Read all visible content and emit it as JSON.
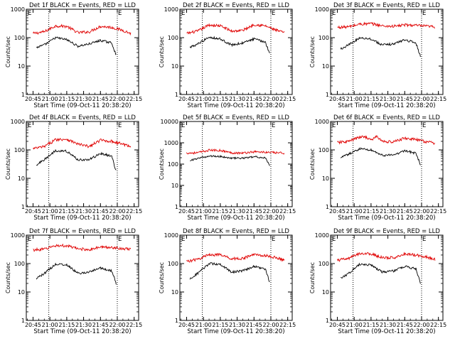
{
  "chart_data": [
    {
      "type": "line",
      "title": "Det 1f BLACK = Events, RED = LLD",
      "xlabel": "Start Time (09-Oct-11 20:38:20)",
      "ylabel": "Counts/sec",
      "y_scale": "log",
      "ylim": [
        1,
        1000
      ],
      "y_tick_labels": [
        "1",
        "10",
        "100",
        "1000"
      ],
      "x_tick_labels": [
        "20:45",
        "21:00",
        "21:15",
        "21:30",
        "21:45",
        "22:00",
        "22:15"
      ],
      "x_markers": [
        {
          "x": "20:59",
          "label": ""
        },
        {
          "x": "22:00",
          "label": "E"
        }
      ],
      "top_markers": [
        "E",
        "E"
      ],
      "colors": {
        "events": "#000000",
        "lld": "#e00000"
      },
      "series": [
        {
          "name": "LLD",
          "color": "#e00000",
          "x": [
            "20:45",
            "20:55",
            "21:05",
            "21:15",
            "21:25",
            "21:35",
            "21:45",
            "21:55",
            "22:05",
            "22:12"
          ],
          "values": [
            140,
            160,
            260,
            250,
            150,
            160,
            250,
            230,
            180,
            140
          ]
        },
        {
          "name": "Events",
          "color": "#000000",
          "x": [
            "20:48",
            "20:55",
            "21:05",
            "21:15",
            "21:25",
            "21:35",
            "21:45",
            "21:55",
            "21:59"
          ],
          "values": [
            45,
            55,
            100,
            85,
            50,
            60,
            80,
            65,
            25
          ]
        }
      ]
    },
    {
      "type": "line",
      "title": "Det 2f BLACK = Events, RED = LLD",
      "xlabel": "Start Time (09-Oct-11 20:38:20)",
      "ylabel": "Counts/sec",
      "y_scale": "log",
      "ylim": [
        1,
        1000
      ],
      "y_tick_labels": [
        "1",
        "10",
        "100",
        "1000"
      ],
      "x_tick_labels": [
        "20:45",
        "21:00",
        "21:15",
        "21:30",
        "21:45",
        "22:00",
        "22:15"
      ],
      "x_markers": [
        {
          "x": "20:59",
          "label": ""
        },
        {
          "x": "22:00",
          "label": "E"
        }
      ],
      "top_markers": [
        "E",
        "E"
      ],
      "colors": {
        "events": "#000000",
        "lld": "#e00000"
      },
      "series": [
        {
          "name": "LLD",
          "color": "#e00000",
          "x": [
            "20:45",
            "20:55",
            "21:05",
            "21:15",
            "21:25",
            "21:35",
            "21:45",
            "21:55",
            "22:05",
            "22:12"
          ],
          "values": [
            140,
            170,
            280,
            260,
            170,
            180,
            290,
            260,
            180,
            150
          ]
        },
        {
          "name": "Events",
          "color": "#000000",
          "x": [
            "20:48",
            "20:55",
            "21:05",
            "21:15",
            "21:25",
            "21:35",
            "21:45",
            "21:55",
            "21:59"
          ],
          "values": [
            45,
            60,
            105,
            90,
            55,
            65,
            90,
            70,
            28
          ]
        }
      ]
    },
    {
      "type": "line",
      "title": "Det 3f BLACK = Events, RED = LLD",
      "xlabel": "Start Time (09-Oct-11 20:38:20)",
      "ylabel": "Counts/sec",
      "y_scale": "log",
      "ylim": [
        1,
        1000
      ],
      "y_tick_labels": [
        "1",
        "10",
        "100",
        "1000"
      ],
      "x_tick_labels": [
        "20:45",
        "21:00",
        "21:15",
        "21:30",
        "21:45",
        "22:00",
        "22:15"
      ],
      "x_markers": [
        {
          "x": "20:59",
          "label": ""
        },
        {
          "x": "22:00",
          "label": "E"
        }
      ],
      "top_markers": [
        "E",
        "E"
      ],
      "colors": {
        "events": "#000000",
        "lld": "#e00000"
      },
      "series": [
        {
          "name": "LLD",
          "color": "#e00000",
          "x": [
            "20:45",
            "20:55",
            "21:05",
            "21:15",
            "21:25",
            "21:35",
            "21:45",
            "21:55",
            "22:05",
            "22:12"
          ],
          "values": [
            230,
            240,
            300,
            310,
            260,
            250,
            280,
            270,
            250,
            240
          ]
        },
        {
          "name": "Events",
          "color": "#000000",
          "x": [
            "20:48",
            "20:55",
            "21:05",
            "21:15",
            "21:25",
            "21:35",
            "21:45",
            "21:55",
            "21:59"
          ],
          "values": [
            40,
            55,
            100,
            90,
            55,
            60,
            85,
            65,
            22
          ]
        }
      ]
    },
    {
      "type": "line",
      "title": "Det 4f BLACK = Events, RED = LLD",
      "xlabel": "Start Time (09-Oct-11 20:38:20)",
      "ylabel": "Counts/sec",
      "y_scale": "log",
      "ylim": [
        1,
        1000
      ],
      "y_tick_labels": [
        "1",
        "10",
        "100",
        "1000"
      ],
      "x_tick_labels": [
        "20:45",
        "21:00",
        "21:15",
        "21:30",
        "21:45",
        "22:00",
        "22:15"
      ],
      "x_markers": [
        {
          "x": "20:59",
          "label": ""
        },
        {
          "x": "22:00",
          "label": "E"
        }
      ],
      "top_markers": [
        "E",
        "E"
      ],
      "colors": {
        "events": "#000000",
        "lld": "#e00000"
      },
      "series": [
        {
          "name": "LLD",
          "color": "#e00000",
          "x": [
            "20:45",
            "20:55",
            "21:05",
            "21:15",
            "21:25",
            "21:35",
            "21:45",
            "21:55",
            "22:05",
            "22:12"
          ],
          "values": [
            110,
            130,
            230,
            240,
            160,
            130,
            220,
            200,
            160,
            130
          ]
        },
        {
          "name": "Events",
          "color": "#000000",
          "x": [
            "20:48",
            "20:55",
            "21:05",
            "21:15",
            "21:25",
            "21:35",
            "21:45",
            "21:55",
            "21:59"
          ],
          "values": [
            30,
            45,
            95,
            90,
            45,
            45,
            75,
            60,
            18
          ]
        }
      ]
    },
    {
      "type": "line",
      "title": "Det 5f BLACK = Events, RED = LLD",
      "xlabel": "Start Time (09-Oct-11 20:38:20)",
      "ylabel": "Counts/sec",
      "y_scale": "log",
      "ylim": [
        1,
        10000
      ],
      "y_tick_labels": [
        "1",
        "10",
        "100",
        "1000",
        "10000"
      ],
      "x_tick_labels": [
        "20:45",
        "21:00",
        "21:15",
        "21:30",
        "21:45",
        "22:00",
        "22:15"
      ],
      "x_markers": [
        {
          "x": "20:59",
          "label": ""
        },
        {
          "x": "22:00",
          "label": "E"
        }
      ],
      "top_markers": [
        "E",
        "E"
      ],
      "colors": {
        "events": "#000000",
        "lld": "#e00000"
      },
      "series": [
        {
          "name": "LLD",
          "color": "#e00000",
          "x": [
            "20:45",
            "20:55",
            "21:05",
            "21:15",
            "21:25",
            "21:35",
            "21:45",
            "21:55",
            "22:05",
            "22:12"
          ],
          "values": [
            330,
            340,
            450,
            440,
            340,
            330,
            380,
            360,
            340,
            330
          ]
        },
        {
          "name": "Events",
          "color": "#000000",
          "x": [
            "20:48",
            "20:55",
            "21:05",
            "21:15",
            "21:25",
            "21:35",
            "21:45",
            "21:55",
            "21:59"
          ],
          "values": [
            150,
            180,
            240,
            230,
            190,
            190,
            220,
            200,
            80
          ]
        }
      ]
    },
    {
      "type": "line",
      "title": "Det 6f BLACK = Events, RED = LLD",
      "xlabel": "Start Time (09-Oct-11 20:38:20)",
      "ylabel": "Counts/sec",
      "y_scale": "log",
      "ylim": [
        1,
        1000
      ],
      "y_tick_labels": [
        "1",
        "10",
        "100",
        "1000"
      ],
      "x_tick_labels": [
        "20:45",
        "21:00",
        "21:15",
        "21:30",
        "21:45",
        "22:00",
        "22:15"
      ],
      "x_markers": [
        {
          "x": "20:59",
          "label": ""
        },
        {
          "x": "22:00",
          "label": "E"
        }
      ],
      "top_markers": [
        "E",
        "E"
      ],
      "colors": {
        "events": "#000000",
        "lld": "#e00000"
      },
      "series": [
        {
          "name": "LLD",
          "color": "#e00000",
          "x": [
            "20:45",
            "20:55",
            "21:05",
            "21:10",
            "21:15",
            "21:20",
            "21:25",
            "21:35",
            "21:45",
            "21:55",
            "22:05",
            "22:12"
          ],
          "values": [
            180,
            200,
            280,
            290,
            220,
            300,
            200,
            190,
            260,
            230,
            190,
            170
          ]
        },
        {
          "name": "Events",
          "color": "#000000",
          "x": [
            "20:48",
            "20:55",
            "21:05",
            "21:15",
            "21:25",
            "21:35",
            "21:45",
            "21:55",
            "21:59"
          ],
          "values": [
            55,
            70,
            110,
            100,
            65,
            65,
            95,
            75,
            30
          ]
        }
      ]
    },
    {
      "type": "line",
      "title": "Det 7f BLACK = Events, RED = LLD",
      "xlabel": "Start Time (09-Oct-11 20:38:20)",
      "ylabel": "Counts/sec",
      "y_scale": "log",
      "ylim": [
        1,
        1000
      ],
      "y_tick_labels": [
        "1",
        "10",
        "100",
        "1000"
      ],
      "x_tick_labels": [
        "20:45",
        "21:00",
        "21:15",
        "21:30",
        "21:45",
        "22:00",
        "22:15"
      ],
      "x_markers": [
        {
          "x": "20:59",
          "label": ""
        },
        {
          "x": "22:00",
          "label": "E"
        }
      ],
      "top_markers": [
        "E",
        "E"
      ],
      "colors": {
        "events": "#000000",
        "lld": "#e00000"
      },
      "series": [
        {
          "name": "LLD",
          "color": "#e00000",
          "x": [
            "20:45",
            "20:55",
            "21:05",
            "21:15",
            "21:25",
            "21:35",
            "21:45",
            "21:55",
            "22:05",
            "22:12"
          ],
          "values": [
            300,
            320,
            430,
            420,
            330,
            310,
            380,
            370,
            340,
            310
          ]
        },
        {
          "name": "Events",
          "color": "#000000",
          "x": [
            "20:48",
            "20:55",
            "21:05",
            "21:15",
            "21:25",
            "21:35",
            "21:45",
            "21:55",
            "21:59"
          ],
          "values": [
            30,
            45,
            95,
            90,
            45,
            50,
            70,
            55,
            20
          ]
        }
      ]
    },
    {
      "type": "line",
      "title": "Det 8f BLACK = Events, RED = LLD",
      "xlabel": "Start Time (09-Oct-11 20:38:20)",
      "ylabel": "Counts/sec",
      "y_scale": "log",
      "ylim": [
        1,
        1000
      ],
      "y_tick_labels": [
        "1",
        "10",
        "100",
        "1000"
      ],
      "x_tick_labels": [
        "20:45",
        "21:00",
        "21:15",
        "21:30",
        "21:45",
        "22:00",
        "22:15"
      ],
      "x_markers": [
        {
          "x": "20:59",
          "label": ""
        },
        {
          "x": "22:00",
          "label": "E"
        }
      ],
      "top_markers": [
        "E",
        "E"
      ],
      "colors": {
        "events": "#000000",
        "lld": "#e00000"
      },
      "series": [
        {
          "name": "LLD",
          "color": "#e00000",
          "x": [
            "20:45",
            "20:55",
            "21:05",
            "21:15",
            "21:25",
            "21:35",
            "21:45",
            "21:55",
            "22:05",
            "22:12"
          ],
          "values": [
            120,
            140,
            210,
            200,
            150,
            150,
            210,
            190,
            160,
            130
          ]
        },
        {
          "name": "Events",
          "color": "#000000",
          "x": [
            "20:48",
            "20:55",
            "21:05",
            "21:15",
            "21:25",
            "21:35",
            "21:45",
            "21:55",
            "21:59"
          ],
          "values": [
            30,
            45,
            100,
            95,
            50,
            55,
            80,
            65,
            22
          ]
        }
      ]
    },
    {
      "type": "line",
      "title": "Det 9f BLACK = Events, RED = LLD",
      "xlabel": "Start Time (09-Oct-11 20:38:20)",
      "ylabel": "Counts/sec",
      "y_scale": "log",
      "ylim": [
        1,
        1000
      ],
      "y_tick_labels": [
        "1",
        "10",
        "100",
        "1000"
      ],
      "x_tick_labels": [
        "20:45",
        "21:00",
        "21:15",
        "21:30",
        "21:45",
        "22:00",
        "22:15"
      ],
      "x_markers": [
        {
          "x": "20:59",
          "label": ""
        },
        {
          "x": "22:00",
          "label": "E"
        }
      ],
      "top_markers": [
        "E",
        "E"
      ],
      "colors": {
        "events": "#000000",
        "lld": "#e00000"
      },
      "series": [
        {
          "name": "LLD",
          "color": "#e00000",
          "x": [
            "20:45",
            "20:55",
            "21:05",
            "21:15",
            "21:25",
            "21:35",
            "21:45",
            "21:55",
            "22:05",
            "22:12"
          ],
          "values": [
            130,
            150,
            230,
            220,
            160,
            160,
            220,
            200,
            170,
            140
          ]
        },
        {
          "name": "Events",
          "color": "#000000",
          "x": [
            "20:48",
            "20:55",
            "21:05",
            "21:15",
            "21:25",
            "21:35",
            "21:45",
            "21:55",
            "21:59"
          ],
          "values": [
            30,
            45,
            95,
            90,
            50,
            55,
            80,
            65,
            20
          ]
        }
      ]
    }
  ]
}
